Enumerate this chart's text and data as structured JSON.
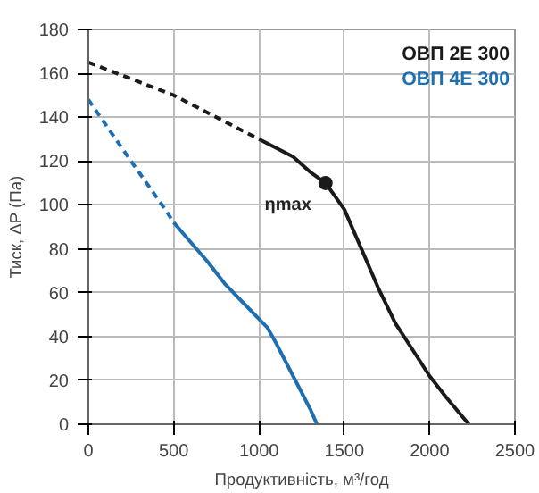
{
  "chart_data": {
    "type": "line",
    "xlabel": "Продуктивність, м³/год",
    "ylabel": "Тиск, ΔP (Па)",
    "xlim": [
      0,
      2500
    ],
    "ylim": [
      0,
      180
    ],
    "xticks": [
      0,
      500,
      1000,
      1500,
      2000,
      2500
    ],
    "yticks": [
      0,
      20,
      40,
      60,
      80,
      100,
      120,
      140,
      160,
      180
    ],
    "grid": true,
    "legend": "top right",
    "series": [
      {
        "name": "ОВП 2Е 300",
        "color": "#1a1a1a",
        "line_style": "solid",
        "x": [
          1000,
          1200,
          1300,
          1390,
          1500,
          1600,
          1700,
          1800,
          1900,
          2000,
          2100,
          2230
        ],
        "values": [
          130,
          122,
          115,
          110,
          98,
          80,
          62,
          46,
          34,
          22,
          12,
          0
        ]
      },
      {
        "name": "ОВП 4Е 300",
        "color": "#1f6fb0",
        "line_style": "solid",
        "x": [
          500,
          600,
          700,
          800,
          900,
          1000,
          1050,
          1100,
          1200,
          1300,
          1340
        ],
        "values": [
          92,
          83,
          74,
          64,
          56,
          48,
          44,
          37,
          22,
          7,
          0
        ]
      },
      {
        "color": "#1a1a1a",
        "line_style": "dashed",
        "x": [
          0,
          500,
          1000
        ],
        "values": [
          165,
          150,
          130
        ]
      },
      {
        "color": "#1f6fb0",
        "line_style": "dashed",
        "x": [
          0,
          250,
          450,
          500
        ],
        "values": [
          148,
          120,
          98,
          92
        ]
      },
      {
        "type": "scatter",
        "marker": "circle",
        "color": "#1a1a1a",
        "x": [
          1390
        ],
        "values": [
          110
        ]
      }
    ],
    "annotations": [
      {
        "text": "ηmax",
        "x": 1390,
        "y": 110
      }
    ]
  }
}
